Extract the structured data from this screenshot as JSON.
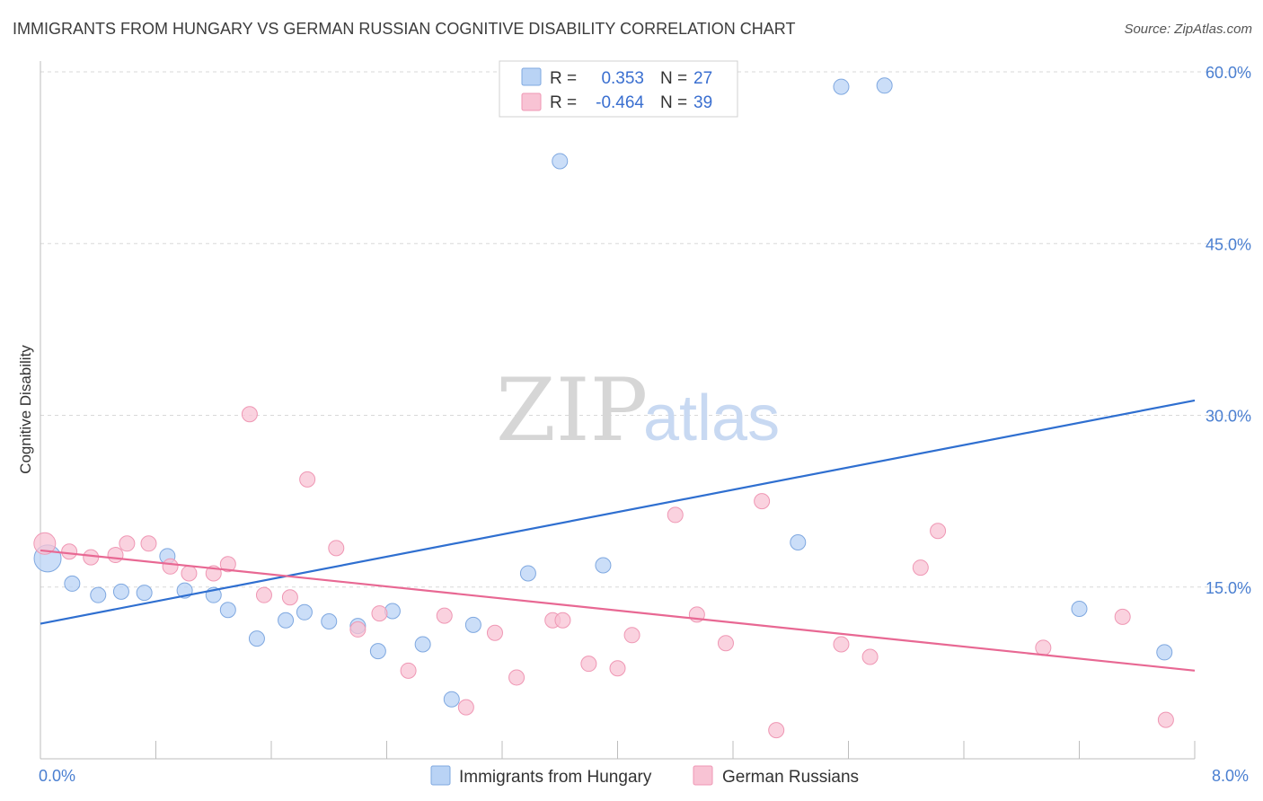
{
  "header": {
    "title": "IMMIGRANTS FROM HUNGARY VS GERMAN RUSSIAN COGNITIVE DISABILITY CORRELATION CHART",
    "source": "Source: ZipAtlas.com"
  },
  "watermark": {
    "zip": "ZIP",
    "atlas": "atlas"
  },
  "legend": {
    "rows": [
      {
        "r_label": "R =",
        "r_value": "0.353",
        "n_label": "N =",
        "n_value": "27"
      },
      {
        "r_label": "R =",
        "r_value": "-0.464",
        "n_label": "N =",
        "n_value": "39"
      }
    ]
  },
  "bottom_legend": {
    "series1": "Immigrants from Hungary",
    "series2": "German Russians"
  },
  "colors": {
    "series1_fill": "#b9d3f5",
    "series1_stroke": "#7fa8e0",
    "series1_line": "#2f6fd0",
    "series2_fill": "#f8c3d4",
    "series2_stroke": "#ef97b4",
    "series2_line": "#e86893",
    "grid": "#d9d9d9",
    "axis": "#bdbdbd"
  },
  "chart_data": {
    "type": "scatter",
    "title": "IMMIGRANTS FROM HUNGARY VS GERMAN RUSSIAN COGNITIVE DISABILITY CORRELATION CHART",
    "xlabel": "",
    "ylabel": "Cognitive Disability",
    "xlim": [
      0,
      8
    ],
    "ylim": [
      0,
      60
    ],
    "x_tick_labels": [
      "0.0%",
      "8.0%"
    ],
    "y_ticks": [
      15,
      30,
      45,
      60
    ],
    "y_tick_labels": [
      "15.0%",
      "30.0%",
      "45.0%",
      "60.0%"
    ],
    "grid": "horizontal dashed",
    "series": [
      {
        "name": "Immigrants from Hungary",
        "R": 0.353,
        "N": 27,
        "points": [
          [
            0.05,
            17.5
          ],
          [
            0.22,
            15.3
          ],
          [
            0.4,
            14.3
          ],
          [
            0.56,
            14.6
          ],
          [
            0.72,
            14.5
          ],
          [
            0.88,
            17.7
          ],
          [
            1.0,
            14.7
          ],
          [
            1.2,
            14.3
          ],
          [
            1.3,
            13.0
          ],
          [
            1.5,
            10.5
          ],
          [
            1.7,
            12.1
          ],
          [
            1.83,
            12.8
          ],
          [
            2.0,
            12.0
          ],
          [
            2.2,
            11.6
          ],
          [
            2.34,
            9.4
          ],
          [
            2.44,
            12.9
          ],
          [
            2.65,
            10.0
          ],
          [
            2.85,
            5.2
          ],
          [
            3.0,
            11.7
          ],
          [
            3.38,
            16.2
          ],
          [
            3.6,
            52.2
          ],
          [
            3.9,
            16.9
          ],
          [
            5.25,
            18.9
          ],
          [
            5.55,
            58.7
          ],
          [
            5.85,
            58.8
          ],
          [
            7.2,
            13.1
          ],
          [
            7.79,
            9.3
          ]
        ],
        "trend": {
          "x": [
            0,
            8
          ],
          "y": [
            11.8,
            31.3
          ]
        }
      },
      {
        "name": "German Russians",
        "R": -0.464,
        "N": 39,
        "points": [
          [
            0.03,
            18.8
          ],
          [
            0.2,
            18.1
          ],
          [
            0.35,
            17.6
          ],
          [
            0.52,
            17.8
          ],
          [
            0.6,
            18.8
          ],
          [
            0.75,
            18.8
          ],
          [
            0.9,
            16.8
          ],
          [
            1.03,
            16.2
          ],
          [
            1.2,
            16.2
          ],
          [
            1.3,
            17.0
          ],
          [
            1.45,
            30.1
          ],
          [
            1.55,
            14.3
          ],
          [
            1.73,
            14.1
          ],
          [
            1.85,
            24.4
          ],
          [
            2.05,
            18.4
          ],
          [
            2.2,
            11.3
          ],
          [
            2.35,
            12.7
          ],
          [
            2.55,
            7.7
          ],
          [
            2.8,
            12.5
          ],
          [
            2.95,
            4.5
          ],
          [
            3.15,
            11.0
          ],
          [
            3.3,
            7.1
          ],
          [
            3.55,
            12.1
          ],
          [
            3.62,
            12.1
          ],
          [
            3.8,
            8.3
          ],
          [
            4.0,
            7.9
          ],
          [
            4.1,
            10.8
          ],
          [
            4.4,
            21.3
          ],
          [
            4.55,
            12.6
          ],
          [
            4.75,
            10.1
          ],
          [
            5.0,
            22.5
          ],
          [
            5.1,
            2.5
          ],
          [
            5.55,
            10.0
          ],
          [
            5.75,
            8.9
          ],
          [
            6.1,
            16.7
          ],
          [
            6.22,
            19.9
          ],
          [
            6.95,
            9.7
          ],
          [
            7.5,
            12.4
          ],
          [
            7.8,
            3.4
          ]
        ],
        "trend": {
          "x": [
            0,
            8
          ],
          "y": [
            18.2,
            7.7
          ]
        }
      }
    ]
  }
}
